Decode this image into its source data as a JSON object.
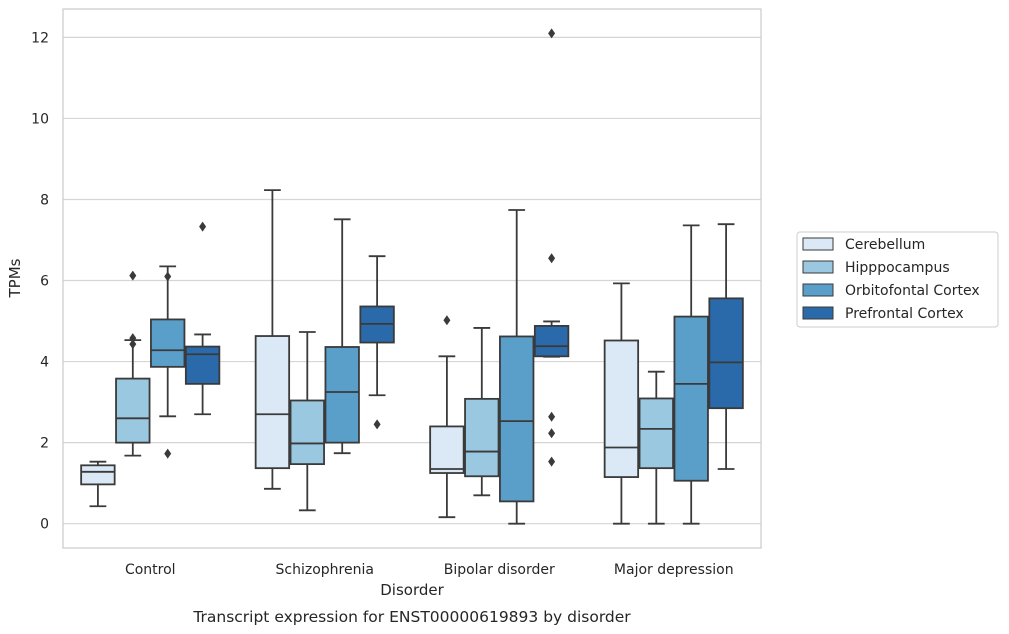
{
  "chart_data": {
    "type": "box",
    "caption": "Transcript expression for ENST00000619893 by disorder",
    "xlabel": "Disorder",
    "ylabel": "TPMs",
    "ylim": [
      -0.6,
      12.7
    ],
    "yticks": [
      0,
      2,
      4,
      6,
      8,
      10,
      12
    ],
    "grid": "horizontal",
    "legend_position": "right",
    "categories": [
      "Control",
      "Schizophrenia",
      "Bipolar disorder",
      "Major depression"
    ],
    "series": [
      {
        "name": "Cerebellum",
        "color": "#dbe9f6",
        "boxes": [
          {
            "whislo": 0.43,
            "q1": 0.97,
            "med": 1.28,
            "q3": 1.44,
            "whishi": 1.53,
            "fliers": []
          },
          {
            "whislo": 0.86,
            "q1": 1.37,
            "med": 2.7,
            "q3": 4.63,
            "whishi": 8.23,
            "fliers": []
          },
          {
            "whislo": 0.16,
            "q1": 1.25,
            "med": 1.35,
            "q3": 2.4,
            "whishi": 4.13,
            "fliers": [
              5.02
            ]
          },
          {
            "whislo": 0.0,
            "q1": 1.15,
            "med": 1.88,
            "q3": 4.52,
            "whishi": 5.93,
            "fliers": []
          }
        ]
      },
      {
        "name": "Hipppocampus",
        "color": "#9ac8e0",
        "boxes": [
          {
            "whislo": 1.68,
            "q1": 2.0,
            "med": 2.6,
            "q3": 3.58,
            "whishi": 4.53,
            "fliers": [
              4.43,
              4.58,
              6.12
            ]
          },
          {
            "whislo": 0.33,
            "q1": 1.47,
            "med": 1.98,
            "q3": 3.04,
            "whishi": 4.73,
            "fliers": []
          },
          {
            "whislo": 0.7,
            "q1": 1.17,
            "med": 1.78,
            "q3": 3.08,
            "whishi": 4.83,
            "fliers": []
          },
          {
            "whislo": 0.0,
            "q1": 1.37,
            "med": 2.34,
            "q3": 3.09,
            "whishi": 3.75,
            "fliers": []
          }
        ]
      },
      {
        "name": "Orbitofontal Cortex",
        "color": "#5a9fca",
        "boxes": [
          {
            "whislo": 2.65,
            "q1": 3.87,
            "med": 4.28,
            "q3": 5.04,
            "whishi": 6.35,
            "fliers": [
              1.73,
              6.1
            ]
          },
          {
            "whislo": 1.74,
            "q1": 2.0,
            "med": 3.25,
            "q3": 4.36,
            "whishi": 7.51,
            "fliers": []
          },
          {
            "whislo": 0.0,
            "q1": 0.55,
            "med": 2.53,
            "q3": 4.62,
            "whishi": 7.74,
            "fliers": []
          },
          {
            "whislo": 0.0,
            "q1": 1.06,
            "med": 3.45,
            "q3": 5.11,
            "whishi": 7.36,
            "fliers": []
          }
        ]
      },
      {
        "name": "Prefrontal Cortex",
        "color": "#2a6aab",
        "boxes": [
          {
            "whislo": 2.7,
            "q1": 3.45,
            "med": 4.18,
            "q3": 4.37,
            "whishi": 4.67,
            "fliers": [
              7.33
            ]
          },
          {
            "whislo": 3.17,
            "q1": 4.47,
            "med": 4.93,
            "q3": 5.36,
            "whishi": 6.6,
            "fliers": [
              2.45
            ]
          },
          {
            "whislo": 4.12,
            "q1": 4.13,
            "med": 4.38,
            "q3": 4.88,
            "whishi": 4.99,
            "fliers": [
              1.53,
              2.23,
              2.64,
              6.55,
              12.1
            ]
          },
          {
            "whislo": 1.35,
            "q1": 2.85,
            "med": 3.98,
            "q3": 5.56,
            "whishi": 7.39,
            "fliers": []
          }
        ]
      }
    ]
  }
}
